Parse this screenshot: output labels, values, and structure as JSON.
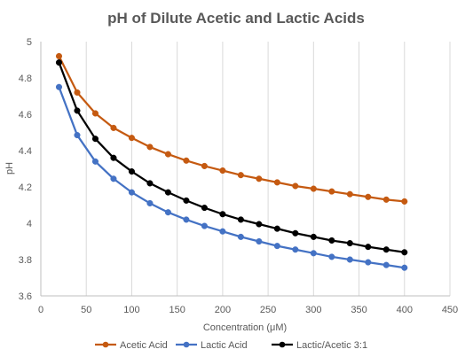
{
  "chart_data": {
    "type": "line",
    "title": "pH of Dilute Acetic and Lactic Acids",
    "xlabel": "Concentration (μM)",
    "ylabel": "pH",
    "xlim": [
      0,
      450
    ],
    "ylim": [
      3.6,
      5
    ],
    "x_ticks": [
      0,
      50,
      100,
      150,
      200,
      250,
      300,
      350,
      400,
      450
    ],
    "x_tick_labels": [
      "0",
      "50",
      "100",
      "150",
      "200",
      "250",
      "300",
      "350",
      "400",
      "450"
    ],
    "y_ticks": [
      3.6,
      3.8,
      4,
      4.2,
      4.4,
      4.6,
      4.8,
      5
    ],
    "y_tick_labels": [
      "3.6",
      "3.8",
      "4",
      "4.2",
      "4.4",
      "4.6",
      "4.8",
      "5"
    ],
    "grid": "vertical",
    "legend_position": "bottom",
    "x": [
      20,
      40,
      60,
      80,
      100,
      120,
      140,
      160,
      180,
      200,
      220,
      240,
      260,
      280,
      300,
      320,
      340,
      360,
      380,
      400
    ],
    "series": [
      {
        "name": "Acetic Acid",
        "color": "#C55A11",
        "values": [
          4.92,
          4.72,
          4.605,
          4.525,
          4.47,
          4.42,
          4.38,
          4.345,
          4.315,
          4.29,
          4.265,
          4.245,
          4.225,
          4.205,
          4.19,
          4.175,
          4.16,
          4.145,
          4.13,
          4.12
        ]
      },
      {
        "name": "Lactic Acid",
        "color": "#4472C4",
        "values": [
          4.75,
          4.485,
          4.34,
          4.245,
          4.17,
          4.11,
          4.06,
          4.02,
          3.985,
          3.955,
          3.925,
          3.9,
          3.875,
          3.855,
          3.835,
          3.815,
          3.8,
          3.785,
          3.77,
          3.755
        ]
      },
      {
        "name": "Lactic/Acetic 3:1",
        "color": "#000000",
        "values": [
          4.885,
          4.62,
          4.465,
          4.36,
          4.285,
          4.22,
          4.17,
          4.125,
          4.085,
          4.05,
          4.02,
          3.995,
          3.97,
          3.945,
          3.925,
          3.905,
          3.89,
          3.87,
          3.855,
          3.84
        ]
      }
    ]
  },
  "colors": {
    "grid": "#D9D9D9",
    "axis": "#BFBFBF",
    "text": "#595959"
  }
}
